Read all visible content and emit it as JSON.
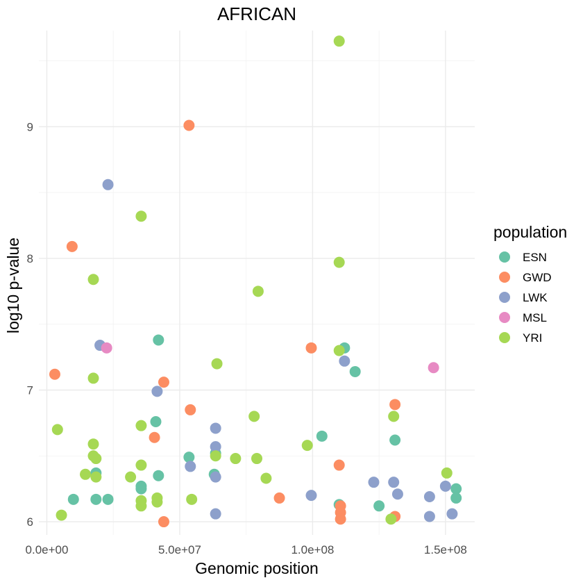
{
  "chart_data": {
    "type": "scatter",
    "title": "AFRICAN",
    "xlabel": "Genomic position",
    "ylabel": "log10 p-value",
    "xlim": [
      -3000000,
      161000000
    ],
    "ylim": [
      5.9,
      9.73
    ],
    "x_ticks": [
      {
        "value": 0,
        "label": "0.0e+00"
      },
      {
        "value": 50000000,
        "label": "5.0e+07"
      },
      {
        "value": 100000000,
        "label": "1.0e+08"
      },
      {
        "value": 150000000,
        "label": "1.5e+08"
      }
    ],
    "y_ticks": [
      {
        "value": 6,
        "label": "6"
      },
      {
        "value": 7,
        "label": "7"
      },
      {
        "value": 8,
        "label": "8"
      },
      {
        "value": 9,
        "label": "9"
      }
    ],
    "grid": true,
    "legend": {
      "title": "population",
      "position": "right"
    },
    "series": [
      {
        "name": "ESN",
        "color": "#66c2a5",
        "points": [
          [
            10000000,
            6.17
          ],
          [
            18500000,
            6.37
          ],
          [
            18500000,
            6.17
          ],
          [
            23000000,
            6.17
          ],
          [
            35500000,
            6.27
          ],
          [
            35500000,
            6.25
          ],
          [
            41000000,
            6.76
          ],
          [
            42000000,
            7.38
          ],
          [
            42000000,
            6.35
          ],
          [
            53500000,
            6.49
          ],
          [
            63000000,
            6.36
          ],
          [
            63500000,
            6.52
          ],
          [
            103500000,
            6.65
          ],
          [
            110000000,
            6.13
          ],
          [
            112000000,
            7.32
          ],
          [
            116000000,
            7.14
          ],
          [
            125000000,
            6.12
          ],
          [
            131000000,
            6.62
          ],
          [
            154000000,
            6.25
          ],
          [
            154000000,
            6.18
          ]
        ]
      },
      {
        "name": "GWD",
        "color": "#fc8d62",
        "points": [
          [
            3000000,
            7.12
          ],
          [
            9500000,
            8.09
          ],
          [
            40500000,
            6.64
          ],
          [
            44000000,
            7.06
          ],
          [
            44000000,
            6.0
          ],
          [
            53500000,
            9.01
          ],
          [
            54000000,
            6.85
          ],
          [
            87500000,
            6.18
          ],
          [
            99500000,
            7.32
          ],
          [
            110000000,
            6.43
          ],
          [
            110500000,
            6.12
          ],
          [
            110500000,
            6.07
          ],
          [
            110500000,
            6.02
          ],
          [
            131000000,
            6.89
          ],
          [
            131000000,
            6.04
          ]
        ]
      },
      {
        "name": "LWK",
        "color": "#8da0cb",
        "points": [
          [
            20000000,
            7.34
          ],
          [
            23000000,
            8.56
          ],
          [
            41500000,
            6.99
          ],
          [
            54000000,
            6.42
          ],
          [
            63500000,
            6.71
          ],
          [
            63500000,
            6.57
          ],
          [
            63500000,
            6.34
          ],
          [
            63500000,
            6.06
          ],
          [
            99500000,
            6.2
          ],
          [
            112000000,
            7.22
          ],
          [
            123000000,
            6.3
          ],
          [
            130500000,
            6.3
          ],
          [
            132000000,
            6.21
          ],
          [
            144000000,
            6.19
          ],
          [
            144000000,
            6.04
          ],
          [
            150000000,
            6.27
          ],
          [
            152500000,
            6.06
          ]
        ]
      },
      {
        "name": "MSL",
        "color": "#e78ac3",
        "points": [
          [
            22500000,
            7.32
          ],
          [
            145500000,
            7.17
          ]
        ]
      },
      {
        "name": "YRI",
        "color": "#a6d854",
        "points": [
          [
            4000000,
            6.7
          ],
          [
            5500000,
            6.05
          ],
          [
            14500000,
            6.36
          ],
          [
            17500000,
            7.84
          ],
          [
            17500000,
            7.09
          ],
          [
            17500000,
            6.59
          ],
          [
            17500000,
            6.5
          ],
          [
            18500000,
            6.48
          ],
          [
            18500000,
            6.34
          ],
          [
            31500000,
            6.34
          ],
          [
            35500000,
            8.32
          ],
          [
            35500000,
            6.73
          ],
          [
            35500000,
            6.43
          ],
          [
            35500000,
            6.16
          ],
          [
            35500000,
            6.12
          ],
          [
            41500000,
            6.18
          ],
          [
            41500000,
            6.15
          ],
          [
            54500000,
            6.17
          ],
          [
            63500000,
            6.5
          ],
          [
            64000000,
            7.2
          ],
          [
            71000000,
            6.48
          ],
          [
            78000000,
            6.8
          ],
          [
            79500000,
            7.75
          ],
          [
            79000000,
            6.48
          ],
          [
            82500000,
            6.33
          ],
          [
            98000000,
            6.58
          ],
          [
            110000000,
            9.65
          ],
          [
            110000000,
            7.97
          ],
          [
            110000000,
            7.3
          ],
          [
            129500000,
            6.02
          ],
          [
            130500000,
            6.8
          ],
          [
            150500000,
            6.37
          ]
        ]
      }
    ]
  }
}
